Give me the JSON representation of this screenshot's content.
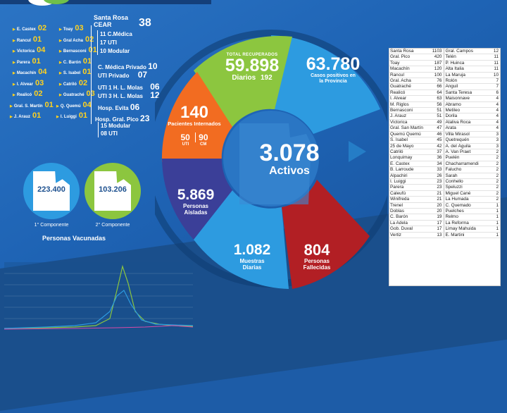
{
  "left_list": [
    {
      "name": "E. Castex",
      "value": "02"
    },
    {
      "name": "Toay",
      "value": "03"
    },
    {
      "name": "Rancul",
      "value": "01"
    },
    {
      "name": "Gral Acha",
      "value": "02"
    },
    {
      "name": "Victorica",
      "value": "04"
    },
    {
      "name": "Bernasconi",
      "value": "01"
    },
    {
      "name": "Parera",
      "value": "01"
    },
    {
      "name": "C. Barón",
      "value": "01"
    },
    {
      "name": "Macachín",
      "value": "04"
    },
    {
      "name": "S. Isabel",
      "value": "01"
    },
    {
      "name": "I. Alvear",
      "value": "03"
    },
    {
      "name": "Catriló",
      "value": "02"
    },
    {
      "name": "Realicó",
      "value": "02"
    },
    {
      "name": "Guatraché",
      "value": "03"
    },
    {
      "name": "Gral. S. Martín",
      "value": "01"
    },
    {
      "name": "Q. Quemú",
      "value": "04"
    },
    {
      "name": "J. Arauz",
      "value": "01"
    },
    {
      "name": "I. Luiggi",
      "value": "01"
    }
  ],
  "santa_rosa": {
    "title": "Santa Rosa",
    "cear": "CEAR",
    "cear_total": "38",
    "cear_items": [
      "11 C.Médica",
      "17 UTI",
      "10 Modular"
    ],
    "cmedica_privado_label": "C. Médica Privado",
    "cmedica_privado": "10",
    "uti_privado_label": "UTI Privado",
    "uti_privado": "07",
    "uti1_label": "UTI 1 H. L. Molas",
    "uti1": "06",
    "uti3_label": "UTI 3 H. L. Molas",
    "uti3": "12",
    "evita_label": "Hosp. Evita",
    "evita": "06",
    "pico_label": "Hosp. Gral. Pico",
    "pico": "23",
    "pico_items": [
      "15 Modular",
      "08 UTI"
    ]
  },
  "components": [
    {
      "value": "223.400",
      "label": "1° Componente",
      "color": "#2d9be0"
    },
    {
      "value": "103.206",
      "label": "2° Componente",
      "color": "#8cc63f"
    }
  ],
  "vaccinated_title": "Personas Vacunadas",
  "wheel": {
    "center_value": "3.078",
    "center_label": "Activos",
    "recuperados_title": "TOTAL RECUPERADOS",
    "recuperados_value": "59.898",
    "recuperados_daily_label": "Diarios",
    "recuperados_daily": "192",
    "positivos_value": "63.780",
    "positivos_label": "Casos positivos en la Provincia",
    "internados_value": "140",
    "internados_label": "Pacientes Internados",
    "internados_uti": "50",
    "internados_uti_label": "UTI",
    "internados_cm": "90",
    "internados_cm_label": "CM",
    "aisladas_value": "5.869",
    "aisladas_label": "Personas Aisladas",
    "muestras_value": "1.082",
    "muestras_label": "Muestras Diarias",
    "fallecidos_value": "804",
    "fallecidos_label": "Personas Fallecidas",
    "colors": {
      "recuperados": "#8cc63f",
      "positivos": "#2d9be0",
      "internados": "#f26c21",
      "aisladas": "#3b3f98",
      "muestras": "#2d9be0",
      "fallecidos": "#b21f24"
    }
  },
  "table": [
    [
      "Santa Rosa",
      "1103",
      "Gral. Campos",
      "12"
    ],
    [
      "Gral. Pico",
      "420",
      "Telén",
      "11"
    ],
    [
      "Toay",
      "187",
      "P. Huinca",
      "11"
    ],
    [
      "Macachín",
      "120",
      "Alta Italia",
      "11"
    ],
    [
      "Rancul",
      "100",
      "La Maruja",
      "10"
    ],
    [
      "Gral. Acha",
      "76",
      "Rolón",
      "7"
    ],
    [
      "Guatraché",
      "66",
      "Anguil",
      "7"
    ],
    [
      "Realicó",
      "64",
      "Santa Teresa",
      "6"
    ],
    [
      "I. Alvear",
      "63",
      "Maisonnave",
      "4"
    ],
    [
      "M. Riglos",
      "56",
      "Abramo",
      "4"
    ],
    [
      "Bernasconi",
      "51",
      "Metileo",
      "4"
    ],
    [
      "J. Arauz",
      "51",
      "Dorila",
      "4"
    ],
    [
      "Victorica",
      "49",
      "Ataliva Roca",
      "4"
    ],
    [
      "Gral. San Martín",
      "47",
      "Arata",
      "4"
    ],
    [
      "Quemú Quemú",
      "46",
      "Villa Mirasol",
      "3"
    ],
    [
      "S. Isabel",
      "45",
      "Quetrequén",
      "3"
    ],
    [
      "25 de Mayo",
      "42",
      "A. del Águila",
      "3"
    ],
    [
      "Catriló",
      "37",
      "A. Van Praet",
      "2"
    ],
    [
      "Lonquimay",
      "36",
      "Puelén",
      "2"
    ],
    [
      "E. Castex",
      "34",
      "Chacharramendi",
      "2"
    ],
    [
      "B. Larroude",
      "33",
      "Falucho",
      "2"
    ],
    [
      "Alpachiri",
      "26",
      "Sarah",
      "2"
    ],
    [
      "I. Luiggi",
      "23",
      "Conhello",
      "2"
    ],
    [
      "Parera",
      "23",
      "Speluzzi",
      "2"
    ],
    [
      "Caleufú",
      "21",
      "Miguel Cané",
      "2"
    ],
    [
      "Winifreda",
      "21",
      "La Humada",
      "2"
    ],
    [
      "Trenel",
      "20",
      "C. Quemado",
      "1"
    ],
    [
      "Doblas",
      "20",
      "Puelches",
      "1"
    ],
    [
      "C. Barón",
      "19",
      "Relmo",
      "1"
    ],
    [
      "La Adela",
      "17",
      "La Reforma",
      "1"
    ],
    [
      "Gob. Duval",
      "17",
      "Limay Mahuida",
      "1"
    ],
    [
      "Vertiz",
      "13",
      "E. Martini",
      "1"
    ]
  ]
}
